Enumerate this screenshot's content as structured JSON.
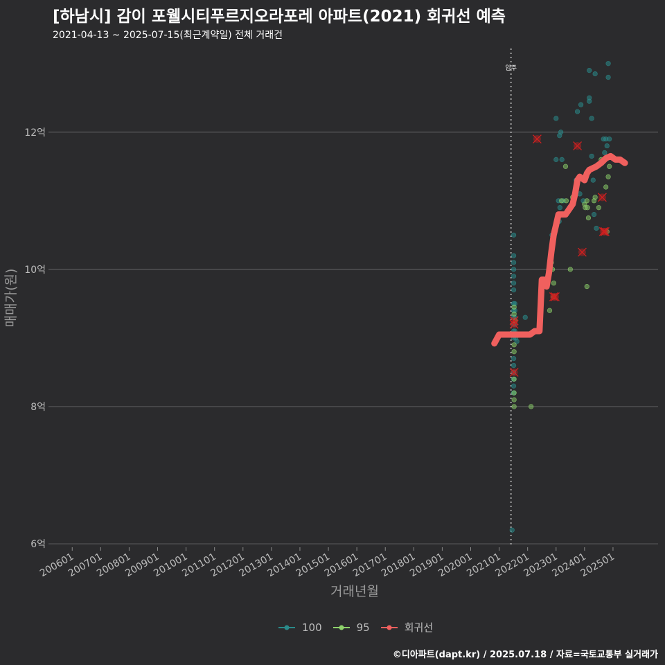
{
  "title": "[하남시] 감이 포웰시티푸르지오라포레 아파트(2021) 회귀선 예측",
  "subtitle": "2021-04-13 ~ 2025-07-15(최근계약일) 전체 거래건",
  "caption": "©디아파트(dapt.kr) / 2025.07.18 / 자료=국토교통부 실거래가",
  "colors": {
    "background": "#2b2b2d",
    "grid": "#5a5a5c",
    "s100": "#2a8a8a",
    "s95": "#8ed36b",
    "regression": "#f0605e",
    "outlier": "#d02020"
  },
  "chart_data": {
    "type": "scatter",
    "xlabel": "거래년월",
    "ylabel": "매매가(원)",
    "x_ticks": [
      "200601",
      "200701",
      "200801",
      "200901",
      "201001",
      "201101",
      "201201",
      "201301",
      "201401",
      "201501",
      "201601",
      "201701",
      "201801",
      "201901",
      "202001",
      "202101",
      "202201",
      "202301",
      "202401",
      "202501"
    ],
    "y_ticks": [
      {
        "value": 6,
        "label": "6억"
      },
      {
        "value": 8,
        "label": "8억"
      },
      {
        "value": 10,
        "label": "10억"
      },
      {
        "value": 12,
        "label": "12억"
      }
    ],
    "xlim": [
      "2005-03",
      "2026-08"
    ],
    "ylim": [
      5.95,
      13.3
    ],
    "annotation": {
      "x": "2021-06",
      "label": "입주"
    },
    "series": [
      {
        "name": "100",
        "points": [
          [
            "2021-07-05",
            10.5
          ],
          [
            "2021-07-05",
            10.2
          ],
          [
            "2021-07-05",
            10.1
          ],
          [
            "2021-07-05",
            10.0
          ],
          [
            "2021-07-05",
            9.9
          ],
          [
            "2021-07-05",
            9.8
          ],
          [
            "2021-07-05",
            9.7
          ],
          [
            "2021-07-05",
            9.5
          ],
          [
            "2021-07-05",
            9.4
          ],
          [
            "2021-07-05",
            9.3
          ],
          [
            "2021-07-05",
            9.2
          ],
          [
            "2021-07-05",
            9.1
          ],
          [
            "2021-07-05",
            9.0
          ],
          [
            "2021-07-05",
            8.7
          ],
          [
            "2021-07-05",
            8.6
          ],
          [
            "2021-07-05",
            8.5
          ],
          [
            "2021-07-05",
            8.4
          ],
          [
            "2021-07-05",
            8.3
          ],
          [
            "2021-07-05",
            8.2
          ],
          [
            "2021-07-20",
            9.5
          ],
          [
            "2021-07-20",
            9.4
          ],
          [
            "2021-07-20",
            9.3
          ],
          [
            "2021-07-20",
            9.2
          ],
          [
            "2021-07-20",
            9.1
          ],
          [
            "2021-08-01",
            9.0
          ],
          [
            "2021-08-15",
            8.95
          ],
          [
            "2021-12-01",
            9.3
          ],
          [
            "2022-11-10",
            10.5
          ],
          [
            "2023-01-01",
            12.2
          ],
          [
            "2023-01-01",
            11.6
          ],
          [
            "2023-02-01",
            11.0
          ],
          [
            "2023-02-15",
            11.95
          ],
          [
            "2023-03-01",
            12.0
          ],
          [
            "2023-03-15",
            11.6
          ],
          [
            "2023-04-01",
            11.0
          ],
          [
            "2023-03-01",
            10.8
          ],
          [
            "2023-02-10",
            10.7
          ],
          [
            "2023-02-20",
            10.9
          ],
          [
            "2023-09-15",
            11.3
          ],
          [
            "2023-10-01",
            12.3
          ],
          [
            "2023-11-01",
            11.1
          ],
          [
            "2023-11-15",
            12.4
          ],
          [
            "2023-12-15",
            11.0
          ],
          [
            "2024-03-01",
            12.9
          ],
          [
            "2024-03-01",
            12.5
          ],
          [
            "2024-03-01",
            12.45
          ],
          [
            "2024-04-01",
            12.2
          ],
          [
            "2024-04-01",
            11.65
          ],
          [
            "2024-05-01",
            10.8
          ],
          [
            "2024-05-15",
            12.85
          ],
          [
            "2024-06-01",
            10.6
          ],
          [
            "2024-04-20",
            11.3
          ],
          [
            "2024-09-01",
            11.9
          ],
          [
            "2024-10-01",
            11.9
          ],
          [
            "2024-09-15",
            11.7
          ],
          [
            "2024-11-01",
            13.0
          ],
          [
            "2024-11-01",
            12.8
          ],
          [
            "2024-11-15",
            11.9
          ],
          [
            "2024-10-15",
            11.8
          ],
          [
            "2021-06-15",
            6.2
          ]
        ]
      },
      {
        "name": "95",
        "points": [
          [
            "2021-07-10",
            8.8
          ],
          [
            "2021-07-10",
            8.9
          ],
          [
            "2021-07-10",
            8.4
          ],
          [
            "2021-07-10",
            8.2
          ],
          [
            "2021-07-10",
            8.1
          ],
          [
            "2021-07-10",
            8.0
          ],
          [
            "2021-07-10",
            9.45
          ],
          [
            "2021-07-10",
            9.35
          ],
          [
            "2021-07-25",
            9.25
          ],
          [
            "2022-02-15",
            8.0
          ],
          [
            "2022-11-01",
            10.1
          ],
          [
            "2022-11-15",
            10.0
          ],
          [
            "2022-12-01",
            9.8
          ],
          [
            "2022-12-01",
            9.6
          ],
          [
            "2022-10-10",
            9.4
          ],
          [
            "2023-03-10",
            11.0
          ],
          [
            "2023-05-01",
            11.5
          ],
          [
            "2023-05-10",
            11.0
          ],
          [
            "2023-07-01",
            10.0
          ],
          [
            "2023-08-01",
            11.05
          ],
          [
            "2024-01-01",
            10.95
          ],
          [
            "2024-01-10",
            10.9
          ],
          [
            "2024-02-01",
            11.0
          ],
          [
            "2024-02-10",
            10.9
          ],
          [
            "2024-02-20",
            10.75
          ],
          [
            "2024-02-01",
            9.75
          ],
          [
            "2024-05-01",
            11.0
          ],
          [
            "2024-05-15",
            11.05
          ],
          [
            "2024-07-01",
            10.9
          ],
          [
            "2024-08-01",
            11.6
          ],
          [
            "2024-10-01",
            11.2
          ],
          [
            "2024-11-01",
            11.35
          ],
          [
            "2024-11-15",
            11.5
          ],
          [
            "2024-10-15",
            10.55
          ]
        ]
      },
      {
        "name": "회귀선",
        "points": [
          [
            "2020-11-01",
            8.92
          ],
          [
            "2021-01-01",
            9.05
          ],
          [
            "2021-03-01",
            9.05
          ],
          [
            "2021-06-01",
            9.05
          ],
          [
            "2021-09-01",
            9.05
          ],
          [
            "2021-12-01",
            9.05
          ],
          [
            "2022-02-01",
            9.05
          ],
          [
            "2022-04-01",
            9.1
          ],
          [
            "2022-06-01",
            9.1
          ],
          [
            "2022-07-01",
            9.85
          ],
          [
            "2022-08-01",
            9.85
          ],
          [
            "2022-09-01",
            9.75
          ],
          [
            "2022-10-01",
            9.95
          ],
          [
            "2022-11-01",
            10.25
          ],
          [
            "2022-12-01",
            10.5
          ],
          [
            "2023-01-01",
            10.65
          ],
          [
            "2023-02-01",
            10.8
          ],
          [
            "2023-03-01",
            10.8
          ],
          [
            "2023-05-01",
            10.8
          ],
          [
            "2023-06-01",
            10.85
          ],
          [
            "2023-07-01",
            10.9
          ],
          [
            "2023-08-01",
            10.95
          ],
          [
            "2023-09-01",
            11.1
          ],
          [
            "2023-10-01",
            11.3
          ],
          [
            "2023-11-01",
            11.35
          ],
          [
            "2024-01-01",
            11.3
          ],
          [
            "2024-02-01",
            11.4
          ],
          [
            "2024-03-01",
            11.45
          ],
          [
            "2024-06-01",
            11.5
          ],
          [
            "2024-08-01",
            11.55
          ],
          [
            "2024-10-01",
            11.62
          ],
          [
            "2024-12-01",
            11.65
          ],
          [
            "2025-02-01",
            11.6
          ],
          [
            "2025-04-01",
            11.6
          ],
          [
            "2025-06-01",
            11.55
          ]
        ]
      }
    ],
    "outliers": [
      [
        "2021-07-10",
        9.25
      ],
      [
        "2021-07-10",
        9.2
      ],
      [
        "2021-07-10",
        8.5
      ],
      [
        "2022-05-01",
        11.9
      ],
      [
        "2022-12-01",
        9.6
      ],
      [
        "2022-12-20",
        9.6
      ],
      [
        "2023-10-01",
        11.8
      ],
      [
        "2023-12-01",
        10.25
      ],
      [
        "2024-08-15",
        11.05
      ],
      [
        "2024-09-01",
        10.55
      ],
      [
        "2024-09-20",
        10.55
      ]
    ]
  }
}
